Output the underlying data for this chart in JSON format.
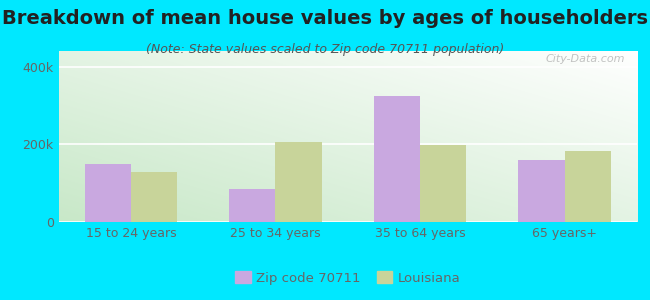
{
  "title": "Breakdown of mean house values by ages of householders",
  "subtitle": "(Note: State values scaled to Zip code 70711 population)",
  "categories": [
    "15 to 24 years",
    "25 to 34 years",
    "35 to 64 years",
    "65 years+"
  ],
  "zip_values": [
    148000,
    85000,
    325000,
    160000
  ],
  "state_values": [
    128000,
    205000,
    197000,
    182000
  ],
  "zip_color": "#c9a8e0",
  "state_color": "#c8d49a",
  "background_outer": "#00e8ff",
  "ylim": [
    0,
    440000
  ],
  "yticks": [
    0,
    200000,
    400000
  ],
  "ytick_labels": [
    "0",
    "200k",
    "400k"
  ],
  "legend_zip_label": "Zip code 70711",
  "legend_state_label": "Louisiana",
  "title_fontsize": 14,
  "subtitle_fontsize": 9,
  "bar_width": 0.32,
  "figsize": [
    6.5,
    3.0
  ],
  "dpi": 100,
  "title_color": "#222222",
  "subtitle_color": "#555555",
  "tick_color": "#666666",
  "watermark": "City-Data.com"
}
